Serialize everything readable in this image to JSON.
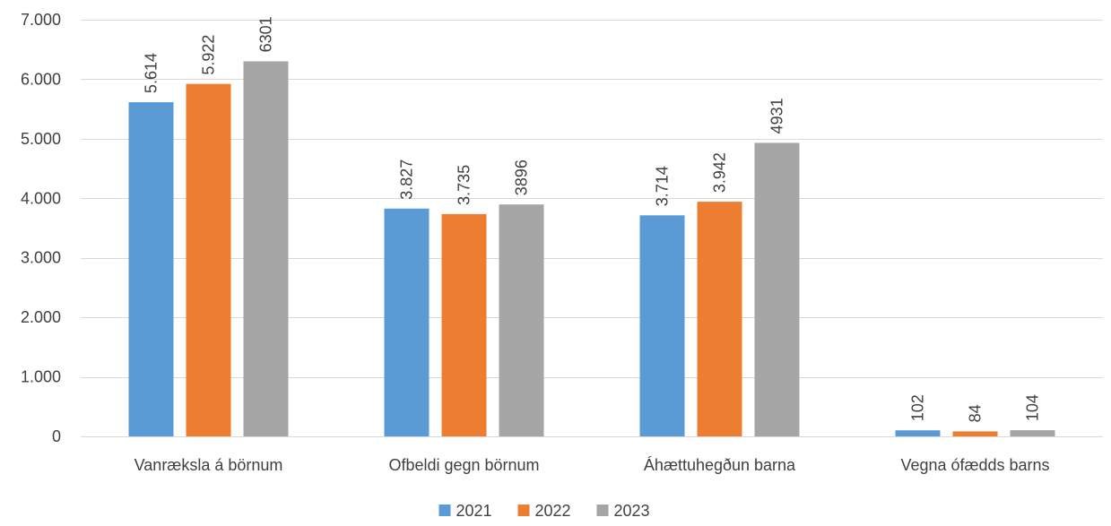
{
  "chart_data": {
    "type": "bar",
    "categories": [
      "Vanræksla á börnum",
      "Ofbeldi gegn börnum",
      "Áhættuhegðun barna",
      "Vegna ófædds barns"
    ],
    "series": [
      {
        "name": "2021",
        "color": "#5B9BD5",
        "values": [
          5614,
          3827,
          3714,
          102
        ],
        "labels": [
          "5.614",
          "3.827",
          "3.714",
          "102"
        ]
      },
      {
        "name": "2022",
        "color": "#ED7D31",
        "values": [
          5922,
          3735,
          3942,
          84
        ],
        "labels": [
          "5.922",
          "3.735",
          "3.942",
          "84"
        ]
      },
      {
        "name": "2023",
        "color": "#A5A5A5",
        "values": [
          6301,
          3896,
          4931,
          104
        ],
        "labels": [
          "6301",
          "3896",
          "4931",
          "104"
        ]
      }
    ],
    "ylim": [
      0,
      7000
    ],
    "yticks": [
      0,
      1000,
      2000,
      3000,
      4000,
      5000,
      6000,
      7000
    ],
    "ytick_labels": [
      "0",
      "1.000",
      "2.000",
      "3.000",
      "4.000",
      "5.000",
      "6.000",
      "7.000"
    ],
    "grid": true,
    "gridline_color": "#D9D9D9",
    "legend_position": "bottom"
  }
}
